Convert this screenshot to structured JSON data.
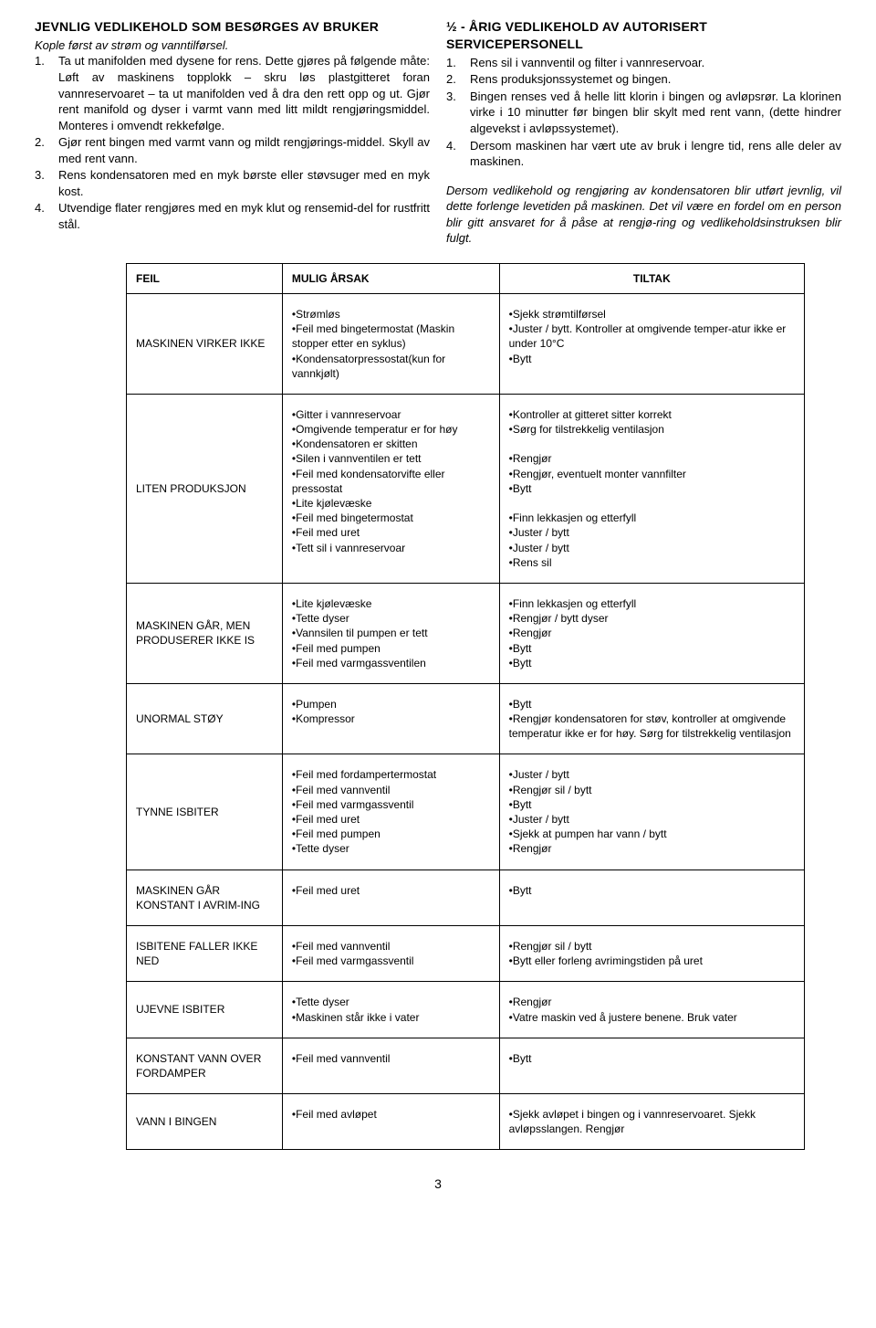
{
  "left": {
    "heading": "JEVNLIG VEDLIKEHOLD SOM BESØRGES AV BRUKER",
    "sub_italic": "Kople først av strøm og vanntilførsel.",
    "items": [
      "Ta ut manifolden med dysene for rens. Dette gjøres på følgende måte: Løft av maskinens topplokk – skru løs plastgitteret foran vannreservoaret – ta ut manifolden ved å dra den rett opp og ut. Gjør rent manifold og dyser i varmt vann med litt mildt rengjøringsmiddel. Monteres i omvendt rekkefølge.",
      "Gjør rent bingen med varmt vann og mildt rengjørings-middel. Skyll av med rent vann.",
      "Rens kondensatoren med en myk børste eller støvsuger med en myk kost.",
      "Utvendige flater rengjøres med en myk klut og rensemid-del for rustfritt stål."
    ]
  },
  "right": {
    "heading": "½ - ÅRIG VEDLIKEHOLD AV AUTORISERT SERVICEPERSONELL",
    "items": [
      "Rens sil i vannventil og filter i vannreservoar.",
      "Rens produksjonssystemet og bingen.",
      "Bingen renses ved å helle litt klorin i bingen og avløpsrør. La klorinen virke i 10 minutter før bingen blir skylt med rent vann, (dette hindrer algevekst i avløpssystemet).",
      "Dersom maskinen har vært ute av bruk i lengre tid, rens alle deler av maskinen."
    ],
    "note": "Dersom vedlikehold og rengjøring av kondensatoren blir utført jevnlig, vil dette forlenge levetiden på maskinen. Det vil være en fordel om en person blir gitt ansvaret for å påse at rengjø-ring og vedlikeholdsinstruksen blir fulgt."
  },
  "table": {
    "headers": {
      "fault": "FEIL",
      "cause": "MULIG ÅRSAK",
      "action": "TILTAK"
    },
    "rows": [
      {
        "fault": "MASKINEN VIRKER IKKE",
        "cause": "•Strømløs\n•Feil med bingetermostat (Maskin stopper etter en syklus)\n•Kondensatorpressostat(kun for vannkjølt)",
        "action": "•Sjekk strømtilførsel\n•Juster / bytt. Kontroller at omgivende temper-atur ikke er under 10°C\n•Bytt"
      },
      {
        "fault": "LITEN PRODUKSJON",
        "cause": "•Gitter i vannreservoar\n•Omgivende temperatur er for høy\n•Kondensatoren er skitten\n•Silen i vannventilen er tett\n•Feil med kondensatorvifte eller pressostat\n•Lite kjølevæske\n•Feil med bingetermostat\n•Feil med uret\n•Tett sil i vannreservoar",
        "action": "•Kontroller at gitteret sitter korrekt\n•Sørg for tilstrekkelig ventilasjon\n\n•Rengjør\n•Rengjør, eventuelt monter vannfilter\n•Bytt\n\n•Finn lekkasjen og etterfyll\n•Juster / bytt\n•Juster / bytt\n•Rens sil"
      },
      {
        "fault": "MASKINEN GÅR, MEN PRODUSERER IKKE IS",
        "cause": "•Lite kjølevæske\n•Tette dyser\n•Vannsilen til pumpen er tett\n•Feil med pumpen\n•Feil med varmgassventilen",
        "action": "•Finn lekkasjen og etterfyll\n•Rengjør / bytt dyser\n•Rengjør\n•Bytt\n•Bytt"
      },
      {
        "fault": "UNORMAL STØY",
        "cause": "•Pumpen\n•Kompressor",
        "action": "•Bytt\n•Rengjør kondensatoren for støv, kontroller at omgivende temperatur ikke er for høy. Sørg for tilstrekkelig ventilasjon"
      },
      {
        "fault": "TYNNE ISBITER",
        "cause": "•Feil med fordampertermostat\n•Feil med vannventil\n•Feil med varmgassventil\n•Feil med uret\n•Feil med pumpen\n•Tette dyser",
        "action": "•Juster / bytt\n•Rengjør sil / bytt\n•Bytt\n•Juster / bytt\n•Sjekk at pumpen har vann / bytt\n•Rengjør"
      },
      {
        "fault": "MASKINEN GÅR KONSTANT I AVRIM-ING",
        "cause": "•Feil med uret",
        "action": "•Bytt"
      },
      {
        "fault": "ISBITENE FALLER IKKE NED",
        "cause": "•Feil med vannventil\n•Feil med varmgassventil",
        "action": "•Rengjør sil / bytt\n•Bytt eller forleng avrimingstiden på uret"
      },
      {
        "fault": "UJEVNE ISBITER",
        "cause": "•Tette dyser\n•Maskinen står ikke i vater",
        "action": "•Rengjør\n•Vatre maskin ved å justere benene. Bruk vater"
      },
      {
        "fault": "KONSTANT VANN OVER FORDAMPER",
        "cause": "•Feil med vannventil",
        "action": "•Bytt"
      },
      {
        "fault": "VANN I BINGEN",
        "cause": "•Feil med avløpet",
        "action": "•Sjekk avløpet i bingen og i vannreservoaret. Sjekk avløpsslangen. Rengjør"
      }
    ]
  },
  "page_number": "3"
}
